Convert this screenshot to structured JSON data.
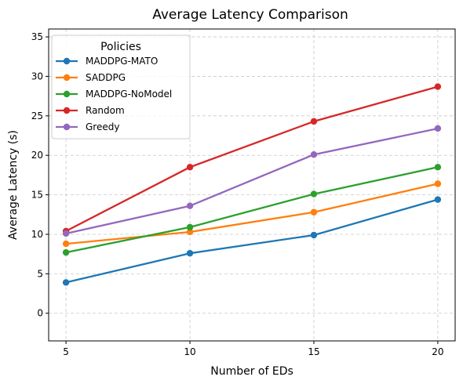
{
  "chart_data": {
    "type": "line",
    "title": "Average Latency Comparison",
    "xlabel": "Number of EDs",
    "ylabel": "Average Latency (s)",
    "x": [
      5,
      10,
      15,
      20
    ],
    "xticks": [
      "5",
      "10",
      "15",
      "20"
    ],
    "yticks": [
      0,
      5,
      10,
      15,
      20,
      25,
      30,
      35
    ],
    "ylim": [
      -3.5,
      36
    ],
    "xlim": [
      4.3,
      20.7
    ],
    "grid": true,
    "legend": {
      "title": "Policies",
      "placement": "top-left"
    },
    "series": [
      {
        "name": "MADDPG-MATO",
        "color": "#1f77b4",
        "values": [
          3.9,
          7.6,
          9.9,
          14.4
        ]
      },
      {
        "name": "SADDPG",
        "color": "#ff7f0e",
        "values": [
          8.8,
          10.3,
          12.8,
          16.4
        ]
      },
      {
        "name": "MADDPG-NoModel",
        "color": "#2ca02c",
        "values": [
          7.7,
          10.9,
          15.1,
          18.5
        ]
      },
      {
        "name": "Random",
        "color": "#d62728",
        "values": [
          10.4,
          18.5,
          24.3,
          28.7
        ]
      },
      {
        "name": "Greedy",
        "color": "#9467bd",
        "values": [
          10.1,
          13.6,
          20.1,
          23.4
        ]
      }
    ]
  }
}
